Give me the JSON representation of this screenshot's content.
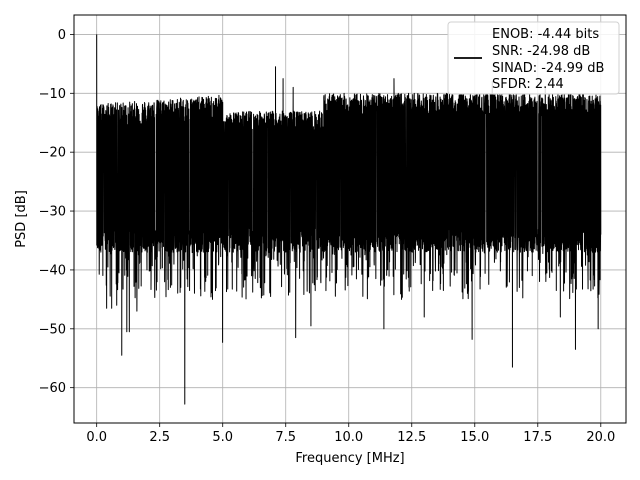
{
  "chart_data": {
    "type": "line",
    "title": "",
    "xlabel": "Frequency [MHz]",
    "ylabel": "PSD [dB]",
    "xlim": [
      -0.9,
      21.0
    ],
    "ylim": [
      -66,
      3.3
    ],
    "x_ticks": [
      0.0,
      2.5,
      5.0,
      7.5,
      10.0,
      12.5,
      15.0,
      17.5,
      20.0
    ],
    "x_tick_labels": [
      "0.0",
      "2.5",
      "5.0",
      "7.5",
      "10.0",
      "12.5",
      "15.0",
      "17.5",
      "20.0"
    ],
    "y_ticks": [
      0,
      -10,
      -20,
      -30,
      -40,
      -50,
      -60
    ],
    "y_tick_labels": [
      "0",
      "−10",
      "−20",
      "−30",
      "−40",
      "−50",
      "−60"
    ],
    "grid": true,
    "legend_position": "top-right",
    "series": [
      {
        "name_lines": [
          "ENOB: -4.44 bits",
          "SNR: -24.98 dB",
          "SINAD: -24.99 dB",
          "SFDR: 2.44"
        ],
        "color": "#000000",
        "x_range": [
          0,
          20
        ],
        "approx_points": [
          [
            0.0,
            0.0
          ],
          [
            0.1,
            -13
          ],
          [
            0.3,
            -16
          ],
          [
            0.4,
            -46.5
          ],
          [
            0.6,
            -46.5
          ],
          [
            0.8,
            -46
          ],
          [
            1.0,
            -54.5
          ],
          [
            1.2,
            -50.5
          ],
          [
            1.3,
            -50.5
          ],
          [
            1.6,
            -47
          ],
          [
            2.0,
            -40
          ],
          [
            2.7,
            -42
          ],
          [
            3.5,
            -62.8
          ],
          [
            4.6,
            -45
          ],
          [
            5.0,
            -52.3
          ],
          [
            5.5,
            -13.5
          ],
          [
            6.0,
            -38
          ],
          [
            6.3,
            -16
          ],
          [
            7.1,
            -5.5
          ],
          [
            7.4,
            -7.5
          ],
          [
            7.8,
            -9
          ],
          [
            7.9,
            -51.5
          ],
          [
            8.5,
            -49.5
          ],
          [
            9.0,
            -38
          ],
          [
            11.0,
            -11.5
          ],
          [
            11.4,
            -50
          ],
          [
            11.8,
            -7.5
          ],
          [
            12.1,
            -45
          ],
          [
            13.0,
            -48
          ],
          [
            13.6,
            -35
          ],
          [
            14.9,
            -51.8
          ],
          [
            15.7,
            -8
          ],
          [
            16.5,
            -56.5
          ],
          [
            17.8,
            -9
          ],
          [
            18.4,
            -48
          ],
          [
            19.0,
            -53.5
          ],
          [
            19.9,
            -50
          ],
          [
            20.0,
            -12
          ]
        ],
        "typical_upper_envelope": -12,
        "typical_lower_envelope": -35
      }
    ]
  }
}
